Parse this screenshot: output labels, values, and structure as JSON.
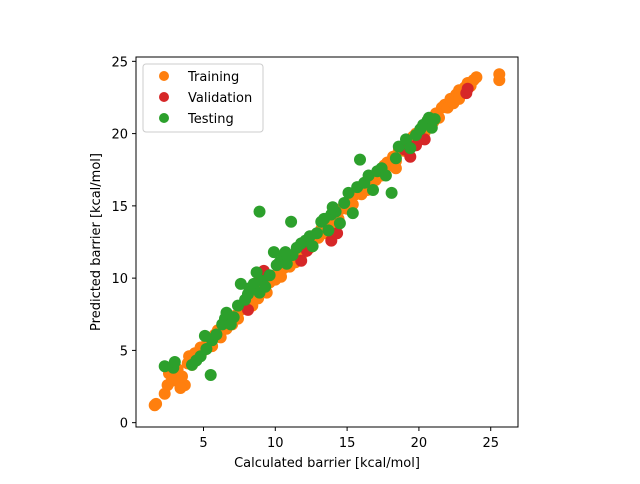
{
  "figure": {
    "background": "#ffffff"
  },
  "chart_data": {
    "type": "scatter",
    "xlabel": "Calculated barrier [kcal/mol]",
    "ylabel": "Predicted barrier [kcal/mol]",
    "xlim": [
      0.3,
      26.9
    ],
    "ylim": [
      -0.3,
      25.3
    ],
    "xticks": [
      5,
      10,
      15,
      20,
      25
    ],
    "yticks": [
      0,
      5,
      10,
      15,
      20,
      25
    ],
    "grid": false,
    "legend_position": "upper-left",
    "series": [
      {
        "name": "Training",
        "color": "#ff7f0e",
        "points": [
          [
            1.6,
            1.2
          ],
          [
            1.7,
            1.3
          ],
          [
            2.3,
            2.0
          ],
          [
            2.5,
            2.6
          ],
          [
            2.6,
            3.4
          ],
          [
            2.8,
            2.9
          ],
          [
            3.0,
            3.1
          ],
          [
            3.2,
            3.7
          ],
          [
            3.3,
            2.8
          ],
          [
            3.5,
            3.2
          ],
          [
            3.7,
            2.6
          ],
          [
            3.9,
            4.1
          ],
          [
            4.0,
            4.6
          ],
          [
            4.2,
            4.0
          ],
          [
            4.4,
            4.8
          ],
          [
            4.6,
            4.5
          ],
          [
            4.8,
            5.2
          ],
          [
            5.0,
            5.0
          ],
          [
            5.2,
            5.4
          ],
          [
            5.4,
            5.8
          ],
          [
            5.6,
            5.3
          ],
          [
            5.8,
            6.1
          ],
          [
            6.0,
            6.4
          ],
          [
            6.2,
            5.9
          ],
          [
            6.4,
            6.6
          ],
          [
            6.6,
            6.5
          ],
          [
            6.8,
            7.1
          ],
          [
            7.0,
            6.8
          ],
          [
            7.2,
            7.4
          ],
          [
            7.4,
            7.2
          ],
          [
            7.6,
            7.8
          ],
          [
            7.8,
            8.0
          ],
          [
            8.0,
            7.9
          ],
          [
            8.2,
            8.4
          ],
          [
            8.4,
            8.1
          ],
          [
            8.6,
            8.8
          ],
          [
            8.8,
            8.6
          ],
          [
            9.0,
            9.1
          ],
          [
            9.2,
            9.4
          ],
          [
            9.4,
            9.0
          ],
          [
            9.6,
            9.7
          ],
          [
            9.8,
            10.1
          ],
          [
            10.0,
            9.9
          ],
          [
            10.2,
            10.4
          ],
          [
            10.4,
            10.1
          ],
          [
            10.6,
            10.7
          ],
          [
            10.8,
            11.0
          ],
          [
            11.0,
            10.8
          ],
          [
            11.2,
            11.4
          ],
          [
            11.4,
            11.1
          ],
          [
            11.6,
            11.8
          ],
          [
            11.8,
            12.0
          ],
          [
            12.0,
            11.8
          ],
          [
            12.2,
            12.4
          ],
          [
            12.4,
            12.1
          ],
          [
            12.6,
            12.8
          ],
          [
            12.8,
            13.0
          ],
          [
            13.0,
            12.8
          ],
          [
            13.2,
            13.4
          ],
          [
            13.4,
            13.1
          ],
          [
            13.6,
            13.8
          ],
          [
            13.8,
            14.0
          ],
          [
            14.0,
            13.8
          ],
          [
            14.2,
            14.4
          ],
          [
            14.4,
            14.1
          ],
          [
            14.6,
            14.8
          ],
          [
            14.8,
            15.0
          ],
          [
            15.0,
            14.8
          ],
          [
            15.2,
            15.4
          ],
          [
            15.4,
            15.1
          ],
          [
            15.6,
            15.8
          ],
          [
            15.8,
            16.0
          ],
          [
            16.0,
            15.8
          ],
          [
            16.2,
            16.4
          ],
          [
            16.4,
            16.1
          ],
          [
            16.6,
            16.8
          ],
          [
            16.8,
            17.0
          ],
          [
            17.0,
            16.8
          ],
          [
            17.2,
            17.4
          ],
          [
            17.4,
            17.1
          ],
          [
            17.6,
            17.8
          ],
          [
            17.8,
            18.0
          ],
          [
            18.0,
            17.8
          ],
          [
            18.2,
            18.4
          ],
          [
            18.4,
            18.1
          ],
          [
            18.6,
            18.8
          ],
          [
            18.8,
            19.0
          ],
          [
            19.0,
            18.8
          ],
          [
            19.2,
            19.4
          ],
          [
            19.4,
            19.1
          ],
          [
            19.6,
            19.8
          ],
          [
            19.8,
            20.0
          ],
          [
            20.0,
            19.8
          ],
          [
            20.2,
            20.4
          ],
          [
            20.4,
            20.1
          ],
          [
            20.6,
            20.8
          ],
          [
            20.8,
            21.0
          ],
          [
            21.0,
            20.8
          ],
          [
            21.2,
            21.4
          ],
          [
            21.4,
            21.1
          ],
          [
            21.6,
            21.8
          ],
          [
            21.8,
            22.0
          ],
          [
            22.0,
            21.8
          ],
          [
            22.2,
            22.4
          ],
          [
            22.4,
            22.1
          ],
          [
            22.6,
            22.7
          ],
          [
            22.8,
            23.0
          ],
          [
            23.0,
            22.8
          ],
          [
            23.2,
            23.2
          ],
          [
            23.4,
            23.5
          ],
          [
            23.6,
            23.3
          ],
          [
            23.8,
            23.7
          ],
          [
            24.0,
            23.9
          ],
          [
            25.6,
            23.7
          ],
          [
            25.6,
            24.1
          ],
          [
            18.4,
            17.6
          ],
          [
            20.1,
            19.6
          ],
          [
            22.8,
            22.4
          ],
          [
            3.4,
            2.4
          ],
          [
            2.9,
            3.9
          ]
        ]
      },
      {
        "name": "Validation",
        "color": "#d62728",
        "points": [
          [
            8.9,
            10.1
          ],
          [
            9.2,
            10.5
          ],
          [
            9.5,
            10.2
          ],
          [
            11.8,
            11.2
          ],
          [
            12.2,
            11.9
          ],
          [
            13.9,
            12.6
          ],
          [
            14.3,
            13.1
          ],
          [
            19.0,
            18.9
          ],
          [
            19.4,
            18.4
          ],
          [
            19.8,
            19.2
          ],
          [
            20.4,
            19.6
          ],
          [
            23.3,
            22.8
          ],
          [
            23.4,
            23.1
          ],
          [
            8.1,
            7.8
          ]
        ]
      },
      {
        "name": "Testing",
        "color": "#2ca02c",
        "points": [
          [
            2.3,
            3.9
          ],
          [
            2.9,
            3.8
          ],
          [
            3.0,
            4.2
          ],
          [
            4.2,
            4.0
          ],
          [
            4.5,
            4.3
          ],
          [
            4.8,
            4.6
          ],
          [
            5.1,
            6.0
          ],
          [
            5.2,
            5.1
          ],
          [
            5.5,
            3.3
          ],
          [
            5.6,
            5.7
          ],
          [
            5.9,
            6.1
          ],
          [
            6.3,
            6.8
          ],
          [
            6.5,
            7.2
          ],
          [
            6.6,
            7.6
          ],
          [
            6.9,
            6.8
          ],
          [
            7.1,
            7.3
          ],
          [
            7.4,
            8.1
          ],
          [
            7.6,
            9.6
          ],
          [
            7.9,
            8.5
          ],
          [
            8.1,
            8.9
          ],
          [
            8.2,
            9.3
          ],
          [
            8.5,
            9.6
          ],
          [
            8.7,
            10.4
          ],
          [
            8.9,
            9.0
          ],
          [
            8.9,
            14.6
          ],
          [
            9.1,
            9.8
          ],
          [
            9.3,
            9.4
          ],
          [
            9.6,
            10.2
          ],
          [
            9.9,
            11.8
          ],
          [
            10.1,
            10.9
          ],
          [
            10.3,
            11.1
          ],
          [
            10.6,
            11.5
          ],
          [
            10.8,
            11.0
          ],
          [
            11.1,
            13.9
          ],
          [
            11.2,
            11.6
          ],
          [
            11.5,
            12.1
          ],
          [
            11.8,
            12.4
          ],
          [
            12.1,
            12.6
          ],
          [
            12.4,
            12.9
          ],
          [
            12.6,
            12.2
          ],
          [
            12.9,
            13.1
          ],
          [
            13.2,
            13.9
          ],
          [
            13.4,
            14.1
          ],
          [
            13.7,
            13.3
          ],
          [
            13.9,
            14.4
          ],
          [
            14.2,
            14.6
          ],
          [
            14.5,
            13.8
          ],
          [
            14.8,
            15.2
          ],
          [
            15.1,
            15.9
          ],
          [
            15.4,
            14.5
          ],
          [
            15.7,
            16.3
          ],
          [
            15.9,
            18.2
          ],
          [
            16.2,
            16.6
          ],
          [
            16.5,
            17.1
          ],
          [
            16.8,
            16.1
          ],
          [
            17.1,
            17.4
          ],
          [
            17.4,
            17.6
          ],
          [
            17.7,
            17.1
          ],
          [
            18.1,
            15.9
          ],
          [
            18.4,
            18.3
          ],
          [
            18.6,
            19.1
          ],
          [
            19.1,
            19.6
          ],
          [
            19.4,
            19.0
          ],
          [
            19.8,
            19.9
          ],
          [
            20.1,
            20.3
          ],
          [
            20.3,
            20.6
          ],
          [
            20.6,
            20.9
          ],
          [
            20.9,
            20.4
          ],
          [
            21.1,
            21.0
          ],
          [
            20.7,
            21.1
          ],
          [
            10.7,
            11.8
          ],
          [
            14.0,
            14.9
          ]
        ]
      }
    ]
  }
}
